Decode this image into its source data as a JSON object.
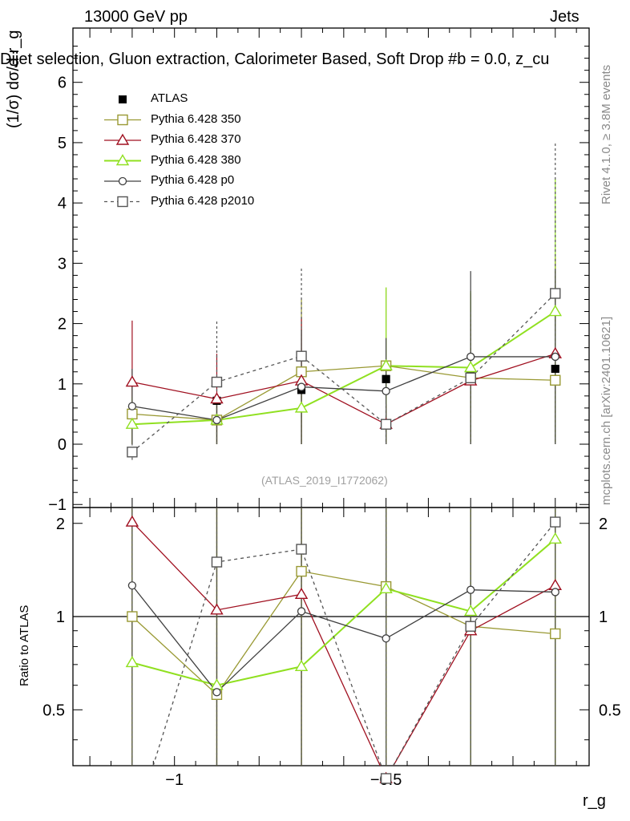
{
  "header": {
    "left": "13000 GeV pp",
    "right": "Jets",
    "plot_title": "Dijet selection, Gluon extraction, Calorimeter Based, Soft Drop #b = 0.0, z_cu",
    "y_label": "(1/σ) dσ/d r_g",
    "ratio_label": "Ratio to ATLAS",
    "x_label": "r_g",
    "side_rivet": "Rivet 4.1.0, ≥ 3.8M events",
    "side_mcplots": "mcplots.cern.ch [arXiv:2401.10621]",
    "watermark": "(ATLAS_2019_I1772062)"
  },
  "chart_data": [
    {
      "type": "line",
      "panel": "main",
      "x": [
        -1.1,
        -0.9,
        -0.7,
        -0.5,
        -0.3,
        -0.1
      ],
      "xlim": [
        -1.24,
        -0.02
      ],
      "ylim": [
        -1.05,
        6.9
      ],
      "x_ticks": [
        -1,
        -0.5
      ],
      "x_tick_labels": [
        "−1",
        "−0.5"
      ],
      "y_ticks": [
        -1,
        0,
        1,
        2,
        3,
        4,
        5,
        6
      ],
      "y_tick_labels": [
        "−1",
        "0",
        "1",
        "2",
        "3",
        "4",
        "5",
        "6"
      ],
      "series": [
        {
          "name": "ATLAS",
          "color": "#000000",
          "marker": "filled-square",
          "values": [
            0.5,
            0.72,
            0.9,
            1.08,
            1.18,
            1.25
          ],
          "err_lo": [
            0,
            0,
            0,
            0,
            0,
            0
          ],
          "err_hi": [
            0,
            0,
            0,
            0,
            0,
            0
          ]
        },
        {
          "name": "Pythia 6.428 350",
          "color": "#999933",
          "marker": "open-square",
          "values": [
            0.5,
            0.4,
            1.2,
            1.3,
            1.1,
            1.06
          ],
          "err_lo": [
            0.5,
            0.4,
            1.2,
            1.3,
            1.1,
            1.06
          ],
          "err_hi": [
            0.6,
            0.4,
            1.2,
            1.3,
            1.4,
            1.8
          ]
        },
        {
          "name": "Pythia 6.428 370",
          "color": "#a01020",
          "marker": "open-triangle",
          "values": [
            1.03,
            0.75,
            1.05,
            0.33,
            1.05,
            1.5
          ],
          "err_lo": [
            1.03,
            0.75,
            1.05,
            0.33,
            1.05,
            1.5
          ],
          "err_hi": [
            1.02,
            0.75,
            1.05,
            0.33,
            1.0,
            1.6
          ]
        },
        {
          "name": "Pythia 6.428 380",
          "color": "#90e020",
          "marker": "open-triangle",
          "values": [
            0.33,
            0.4,
            0.6,
            1.3,
            1.27,
            2.2
          ],
          "err_lo": [
            0.33,
            0.4,
            0.6,
            1.3,
            1.27,
            2.2
          ],
          "err_hi": [
            0.45,
            0.4,
            0.6,
            1.3,
            1.27,
            2.2
          ]
        },
        {
          "name": "Pythia 6.428 p0",
          "color": "#404040",
          "marker": "open-circle",
          "values": [
            0.63,
            0.4,
            0.95,
            0.88,
            1.45,
            1.45
          ],
          "err_lo": [
            0.63,
            0.4,
            0.95,
            0.88,
            1.45,
            1.45
          ],
          "err_hi": [
            0.62,
            0.4,
            0.95,
            0.88,
            1.42,
            1.45
          ]
        },
        {
          "name": "Pythia 6.428 p2010",
          "color": "#555555",
          "marker": "open-square",
          "dashed": true,
          "values": [
            -0.13,
            1.03,
            1.46,
            0.33,
            1.1,
            2.5
          ],
          "err_lo": [
            0.13,
            1.03,
            1.46,
            0.33,
            1.1,
            2.5
          ],
          "err_hi": [
            0.13,
            1.03,
            1.46,
            0.33,
            1.1,
            2.5
          ]
        }
      ]
    },
    {
      "type": "line",
      "panel": "ratio",
      "x": [
        -1.1,
        -0.9,
        -0.7,
        -0.5,
        -0.3,
        -0.1
      ],
      "xlim": [
        -1.24,
        -0.02
      ],
      "ylim": [
        0.33,
        2.25
      ],
      "y_ticks": [
        0.5,
        1,
        2
      ],
      "y_tick_labels": [
        "0.5",
        "1",
        "2"
      ],
      "reference_line": 1,
      "series": [
        {
          "name": "Pythia 6.428 350",
          "color": "#999933",
          "marker": "open-square",
          "values": [
            1.0,
            0.56,
            1.4,
            1.25,
            0.93,
            0.88
          ]
        },
        {
          "name": "Pythia 6.428 370",
          "color": "#a01020",
          "marker": "open-triangle",
          "values": [
            2.02,
            1.05,
            1.18,
            0.3,
            0.9,
            1.26
          ]
        },
        {
          "name": "Pythia 6.428 380",
          "color": "#90e020",
          "marker": "open-triangle",
          "values": [
            0.71,
            0.6,
            0.69,
            1.23,
            1.04,
            1.78
          ]
        },
        {
          "name": "Pythia 6.428 p0",
          "color": "#404040",
          "marker": "open-circle",
          "values": [
            1.26,
            0.57,
            1.04,
            0.85,
            1.22,
            1.2
          ]
        },
        {
          "name": "Pythia 6.428 p2010",
          "color": "#555555",
          "marker": "open-square",
          "dashed": true,
          "values": [
            0.2,
            1.5,
            1.65,
            0.3,
            0.93,
            2.02
          ]
        }
      ]
    }
  ]
}
